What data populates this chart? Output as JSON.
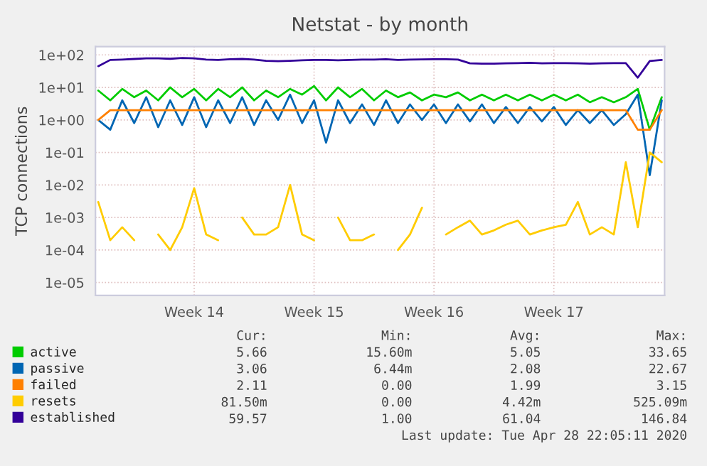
{
  "chart_data": {
    "type": "line",
    "title": "Netstat - by month",
    "ylabel": "TCP connections",
    "log": "y",
    "categories": [
      null,
      null,
      null,
      null,
      null,
      null,
      null,
      null,
      "Week 14",
      null,
      null,
      null,
      null,
      null,
      null,
      null,
      null,
      null,
      "Week 15",
      null,
      null,
      null,
      null,
      null,
      null,
      null,
      null,
      null,
      "Week 16",
      null,
      null,
      null,
      null,
      null,
      null,
      null,
      null,
      null,
      "Week 17",
      null,
      null,
      null,
      null,
      null,
      null,
      null,
      null,
      null
    ],
    "ylim": [
      4e-06,
      180
    ],
    "yticks": [
      {
        "value": 1e-05,
        "label": "1e-05"
      },
      {
        "value": 0.0001,
        "label": "1e-04"
      },
      {
        "value": 0.001,
        "label": "1e-03"
      },
      {
        "value": 0.01,
        "label": "1e-02"
      },
      {
        "value": 0.1,
        "label": "1e-01"
      },
      {
        "value": 1,
        "label": "1e+00"
      },
      {
        "value": 10,
        "label": "1e+01"
      },
      {
        "value": 100,
        "label": "1e+02"
      }
    ],
    "grid": true,
    "legend": "bottom left",
    "series": [
      {
        "name": "active",
        "color": "#00cc00",
        "values": [
          8,
          4,
          9,
          5,
          8,
          4,
          10,
          5,
          9,
          4,
          9,
          5,
          10,
          4,
          8,
          5,
          9,
          6,
          11,
          4,
          10,
          5,
          9,
          4,
          8,
          5,
          7,
          4,
          6,
          5,
          7,
          4,
          6,
          4,
          6,
          4,
          6,
          4,
          6,
          4,
          6,
          3.5,
          5,
          3.5,
          5,
          9,
          0.5,
          5
        ]
      },
      {
        "name": "passive",
        "color": "#0066b3",
        "values": [
          1,
          0.5,
          4,
          0.8,
          5,
          0.6,
          4,
          0.7,
          5,
          0.6,
          4,
          0.8,
          5,
          0.7,
          4,
          1,
          6,
          0.8,
          4,
          0.2,
          4,
          0.8,
          3,
          0.7,
          4,
          0.8,
          3,
          1,
          3,
          0.8,
          3,
          0.9,
          3,
          0.8,
          2.5,
          0.8,
          2.5,
          0.9,
          2.5,
          0.7,
          2,
          0.8,
          2,
          0.7,
          1.5,
          6,
          0.02,
          4
        ]
      },
      {
        "name": "failed",
        "color": "#ff8000",
        "values": [
          1,
          2,
          2,
          2,
          2,
          2,
          2,
          2,
          2,
          2,
          2,
          2,
          2,
          2,
          2,
          2,
          2,
          2,
          2,
          2,
          2,
          2,
          2,
          2,
          2,
          2,
          2,
          2,
          2,
          2,
          2,
          2,
          2,
          2,
          2,
          2,
          2,
          2,
          2,
          2,
          2,
          2,
          2,
          2,
          2,
          0.5,
          0.5,
          2
        ]
      },
      {
        "name": "resets",
        "color": "#ffcc00",
        "values": [
          0.003,
          0.0002,
          0.0005,
          0.0002,
          null,
          0.0003,
          0.0001,
          0.0005,
          0.008,
          0.0003,
          0.0002,
          null,
          0.001,
          0.0003,
          0.0003,
          0.0005,
          0.01,
          0.0003,
          0.0002,
          null,
          0.001,
          0.0002,
          0.0002,
          0.0003,
          null,
          0.0001,
          0.0003,
          0.002,
          null,
          0.0003,
          0.0005,
          0.0008,
          0.0003,
          0.0004,
          0.0006,
          0.0008,
          0.0003,
          0.0004,
          0.0005,
          0.0006,
          0.003,
          0.0003,
          0.0005,
          0.0003,
          0.05,
          0.0005,
          0.1,
          0.05
        ]
      },
      {
        "name": "established",
        "color": "#330099",
        "values": [
          45,
          70,
          72,
          75,
          78,
          78,
          76,
          80,
          78,
          72,
          70,
          74,
          75,
          72,
          66,
          64,
          66,
          68,
          70,
          70,
          68,
          70,
          72,
          72,
          74,
          70,
          72,
          73,
          74,
          74,
          72,
          55,
          54,
          54,
          55,
          56,
          57,
          55,
          56,
          56,
          55,
          54,
          55,
          56,
          56,
          20,
          65,
          70
        ]
      }
    ],
    "annotations": [
      "Cur:",
      "Min:",
      "Avg:",
      "Max:",
      "5.66",
      "15.60m",
      "5.05",
      "33.65",
      "3.06",
      "6.44m",
      "2.08",
      "22.67",
      "2.11",
      "0.00",
      "1.99",
      "3.15",
      "81.50m",
      "0.00",
      "4.42m",
      "525.09m",
      "59.57",
      "1.00",
      "61.04",
      "146.84",
      "Last update: Tue Apr 28 22:05:11 2020"
    ]
  }
}
